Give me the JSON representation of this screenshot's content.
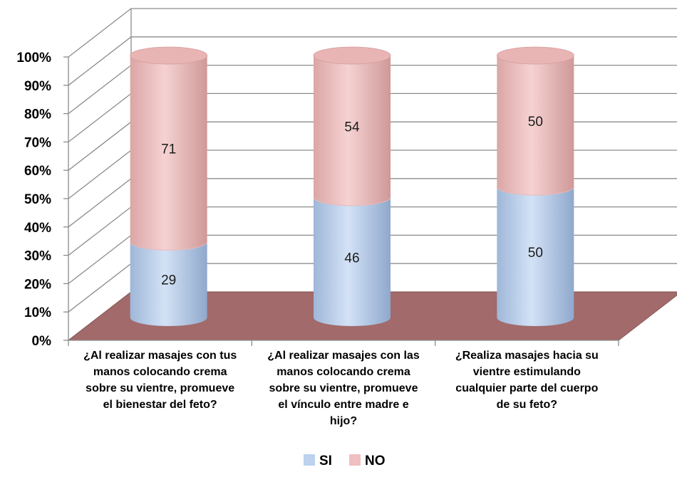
{
  "chart_data": {
    "type": "bar",
    "stacked": true,
    "percent": true,
    "categories": [
      [
        "¿Al realizar masajes con tus",
        "manos colocando crema",
        "sobre su vientre, promueve",
        "el bienestar del feto?"
      ],
      [
        "¿Al realizar masajes con las",
        "manos colocando crema",
        "sobre su vientre, promueve",
        "el vínculo entre madre e",
        "hijo?"
      ],
      [
        "¿Realiza masajes hacia su",
        "vientre estimulando",
        "cualquier parte del cuerpo",
        "de su feto?"
      ]
    ],
    "series": [
      {
        "name": "SI",
        "values": [
          29,
          46,
          50
        ],
        "color": "#bcd2ee"
      },
      {
        "name": "NO",
        "values": [
          71,
          54,
          50
        ],
        "color": "#f0c0c0"
      }
    ],
    "y_ticks": [
      "0%",
      "10%",
      "20%",
      "30%",
      "40%",
      "50%",
      "60%",
      "70%",
      "80%",
      "90%",
      "100%"
    ],
    "ylim": [
      0,
      100
    ],
    "grid": true,
    "floor_color": "#a26a6a",
    "legend_position": "bottom"
  }
}
